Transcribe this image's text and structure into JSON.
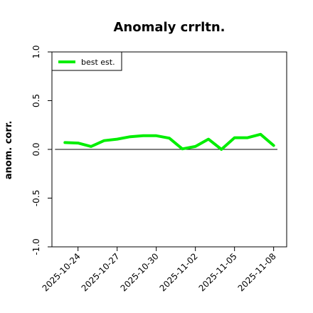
{
  "chart_data": {
    "type": "line",
    "title": "Anomaly crrltn.",
    "ylabel": "anom. corr.",
    "xlabel": "",
    "ylim": [
      -1.0,
      1.0
    ],
    "yticks": [
      -1.0,
      -0.5,
      0.0,
      0.5,
      1.0
    ],
    "ytick_labels": [
      "-1.0",
      "-0.5",
      "0.0",
      "0.5",
      "1.0"
    ],
    "xlim": [
      "2025-10-22",
      "2025-11-09"
    ],
    "xtick_labels": [
      "2025-10-24",
      "2025-10-27",
      "2025-10-30",
      "2025-11-02",
      "2025-11-05",
      "2025-11-08"
    ],
    "reference_line": 0.0,
    "legend": {
      "position": "top-left",
      "entries": [
        "best est."
      ]
    },
    "series": [
      {
        "name": "best est.",
        "color": "#00ee00",
        "x": [
          "2025-10-23",
          "2025-10-24",
          "2025-10-25",
          "2025-10-26",
          "2025-10-27",
          "2025-10-28",
          "2025-10-29",
          "2025-10-30",
          "2025-10-31",
          "2025-11-01",
          "2025-11-02",
          "2025-11-03",
          "2025-11-04",
          "2025-11-05",
          "2025-11-06",
          "2025-11-07",
          "2025-11-08"
        ],
        "values": [
          0.07,
          0.065,
          0.03,
          0.09,
          0.105,
          0.13,
          0.14,
          0.14,
          0.115,
          0.005,
          0.03,
          0.105,
          0.0,
          0.12,
          0.12,
          0.155,
          0.04
        ]
      }
    ]
  }
}
